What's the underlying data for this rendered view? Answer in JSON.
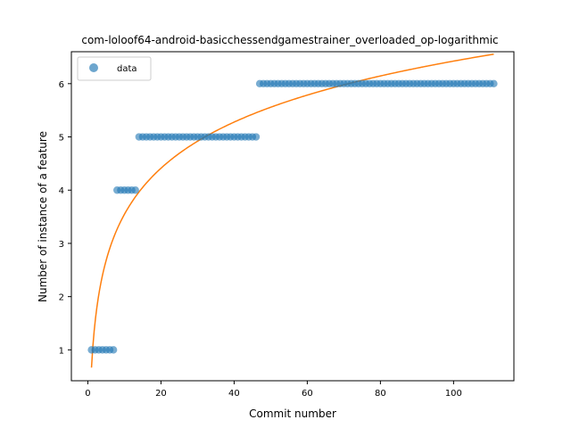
{
  "chart_data": {
    "type": "scatter",
    "title": "com-loloof64-android-basicchessendgamestrainer_overloaded_op-logarithmic",
    "xlabel": "Commit number",
    "ylabel": "Number of instance of a feature",
    "xlim": [
      -4.5,
      116.5
    ],
    "ylim": [
      0.42,
      6.6
    ],
    "xticks": [
      0,
      20,
      40,
      60,
      80,
      100
    ],
    "yticks": [
      1,
      2,
      3,
      4,
      5,
      6
    ],
    "grid": false,
    "legend": {
      "placement": "top-left",
      "entries": [
        "data"
      ]
    },
    "colors": {
      "data": "#1f77b4",
      "fit": "#ff7f0e"
    },
    "series": [
      {
        "name": "data",
        "kind": "points",
        "segments": [
          {
            "x_from": 1,
            "x_to": 7,
            "y": 1
          },
          {
            "x_from": 8,
            "x_to": 13,
            "y": 4
          },
          {
            "x_from": 14,
            "x_to": 46,
            "y": 5
          },
          {
            "x_from": 47,
            "x_to": 111,
            "y": 6
          }
        ]
      },
      {
        "kind": "line",
        "model": "logarithmic",
        "a": 0.667,
        "b": 1.25,
        "x_range": [
          1,
          111
        ]
      }
    ]
  }
}
